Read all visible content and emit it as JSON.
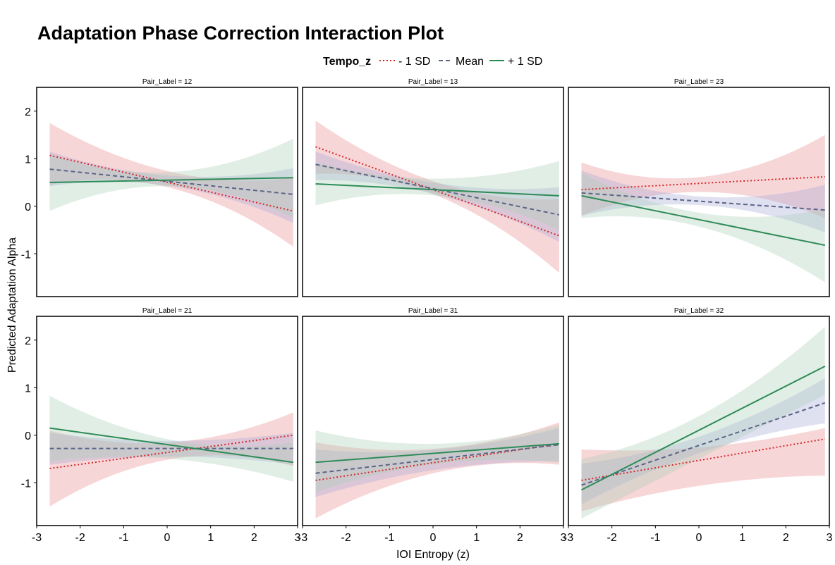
{
  "chart_data": {
    "type": "line",
    "title": "Adaptation Phase Correction Interaction Plot",
    "xlabel": "IOI Entropy (z)",
    "ylabel": "Predicted Adaptation Alpha",
    "xlim": [
      -3,
      3
    ],
    "ylim": [
      -1.9,
      2.5
    ],
    "x_ticks": [
      -3,
      -2,
      -1,
      0,
      1,
      2,
      3
    ],
    "y_ticks": [
      -1,
      0,
      1,
      2
    ],
    "grid": false,
    "legend": {
      "title": "Tempo_z",
      "placement": "top",
      "entries": [
        {
          "label": "- 1 SD",
          "color": "#d62728",
          "style": "dotted"
        },
        {
          "label": "Mean",
          "color": "#5c6487",
          "style": "dashed"
        },
        {
          "label": "+ 1 SD",
          "color": "#2e8b57",
          "style": "solid"
        }
      ]
    },
    "fill_colors": [
      "#e8898f",
      "#a4a9d8",
      "#a9cfb6"
    ],
    "x_range": [
      -2.7,
      2.9
    ],
    "panels": [
      {
        "strip": "Pair_Label = 12",
        "series": [
          {
            "name": "- 1 SD",
            "y": [
              1.07,
              -0.1
            ],
            "ci_low": [
              0.45,
              -0.85
            ],
            "ci_mid_low": 0.38,
            "ci_high": [
              1.75,
              0.6
            ],
            "ci_mid_high": 0.72
          },
          {
            "name": "Mean",
            "y": [
              0.78,
              0.25
            ],
            "ci_low": [
              0.42,
              -0.35
            ],
            "ci_mid_low": 0.42,
            "ci_high": [
              1.15,
              0.8
            ],
            "ci_mid_high": 0.64
          },
          {
            "name": "+ 1 SD",
            "y": [
              0.5,
              0.6
            ],
            "ci_low": [
              -0.1,
              -0.25
            ],
            "ci_mid_low": 0.42,
            "ci_high": [
              1.1,
              1.42
            ],
            "ci_mid_high": 0.72
          }
        ]
      },
      {
        "strip": "Pair_Label = 13",
        "series": [
          {
            "name": "- 1 SD",
            "y": [
              1.25,
              -0.62
            ],
            "ci_low": [
              0.68,
              -1.4
            ],
            "ci_mid_low": 0.22,
            "ci_high": [
              1.8,
              0.15
            ],
            "ci_mid_high": 0.5
          },
          {
            "name": "Mean",
            "y": [
              0.88,
              -0.18
            ],
            "ci_low": [
              0.55,
              -0.75
            ],
            "ci_mid_low": 0.24,
            "ci_high": [
              1.15,
              0.4
            ],
            "ci_mid_high": 0.48
          },
          {
            "name": "+ 1 SD",
            "y": [
              0.47,
              0.22
            ],
            "ci_low": [
              0.02,
              -0.5
            ],
            "ci_mid_low": 0.22,
            "ci_high": [
              0.92,
              0.95
            ],
            "ci_mid_high": 0.58
          }
        ]
      },
      {
        "strip": "Pair_Label = 23",
        "series": [
          {
            "name": "- 1 SD",
            "y": [
              0.35,
              0.62
            ],
            "ci_low": [
              -0.2,
              -0.25
            ],
            "ci_mid_low": 0.3,
            "ci_high": [
              0.92,
              1.5
            ],
            "ci_mid_high": 0.62
          },
          {
            "name": "Mean",
            "y": [
              0.28,
              -0.08
            ],
            "ci_low": [
              -0.2,
              -0.55
            ],
            "ci_mid_low": 0.02,
            "ci_high": [
              0.75,
              0.45
            ],
            "ci_mid_high": 0.2
          },
          {
            "name": "+ 1 SD",
            "y": [
              0.22,
              -0.82
            ],
            "ci_low": [
              -0.25,
              -1.6
            ],
            "ci_mid_low": -0.45,
            "ci_high": [
              0.7,
              -0.05
            ],
            "ci_mid_high": -0.15
          }
        ]
      },
      {
        "strip": "Pair_Label = 21",
        "series": [
          {
            "name": "- 1 SD",
            "y": [
              -0.7,
              0.0
            ],
            "ci_low": [
              -1.5,
              -0.65
            ],
            "ci_mid_low": -0.5,
            "ci_high": [
              0.1,
              0.48
            ],
            "ci_mid_high": -0.15
          },
          {
            "name": "Mean",
            "y": [
              -0.28,
              -0.28
            ],
            "ci_low": [
              -0.62,
              -0.62
            ],
            "ci_mid_low": -0.45,
            "ci_high": [
              0.05,
              0.05
            ],
            "ci_mid_high": -0.12
          },
          {
            "name": "+ 1 SD",
            "y": [
              0.15,
              -0.57
            ],
            "ci_low": [
              -0.55,
              -0.98
            ],
            "ci_mid_low": -0.5,
            "ci_high": [
              0.83,
              -0.15
            ],
            "ci_mid_high": -0.1
          }
        ]
      },
      {
        "strip": "Pair_Label = 31",
        "series": [
          {
            "name": "- 1 SD",
            "y": [
              -0.95,
              -0.18
            ],
            "ci_low": [
              -1.75,
              -0.62
            ],
            "ci_mid_low": -0.78,
            "ci_high": [
              -0.15,
              0.27
            ],
            "ci_mid_high": -0.28
          },
          {
            "name": "Mean",
            "y": [
              -0.8,
              -0.2
            ],
            "ci_low": [
              -1.3,
              -0.55
            ],
            "ci_mid_low": -0.72,
            "ci_high": [
              -0.3,
              0.15
            ],
            "ci_mid_high": -0.3
          },
          {
            "name": "+ 1 SD",
            "y": [
              -0.57,
              -0.18
            ],
            "ci_low": [
              -1.2,
              -0.58
            ],
            "ci_mid_low": -0.6,
            "ci_high": [
              0.1,
              0.22
            ],
            "ci_mid_high": -0.18
          }
        ]
      },
      {
        "strip": "Pair_Label = 32",
        "series": [
          {
            "name": "- 1 SD",
            "y": [
              -0.95,
              -0.08
            ],
            "ci_low": [
              -1.6,
              -0.85
            ],
            "ci_mid_low": -1.05,
            "ci_high": [
              -0.3,
              0.15
            ],
            "ci_mid_high": -0.25
          },
          {
            "name": "Mean",
            "y": [
              -1.05,
              0.68
            ],
            "ci_low": [
              -1.45,
              0.25
            ],
            "ci_mid_low": -0.35,
            "ci_high": [
              -0.6,
              1.2
            ],
            "ci_mid_high": 0.0
          },
          {
            "name": "+ 1 SD",
            "y": [
              -1.15,
              1.45
            ],
            "ci_low": [
              -1.75,
              0.85
            ],
            "ci_mid_low": -0.45,
            "ci_high": [
              -0.5,
              2.28
            ],
            "ci_mid_high": 0.45
          }
        ]
      }
    ]
  }
}
